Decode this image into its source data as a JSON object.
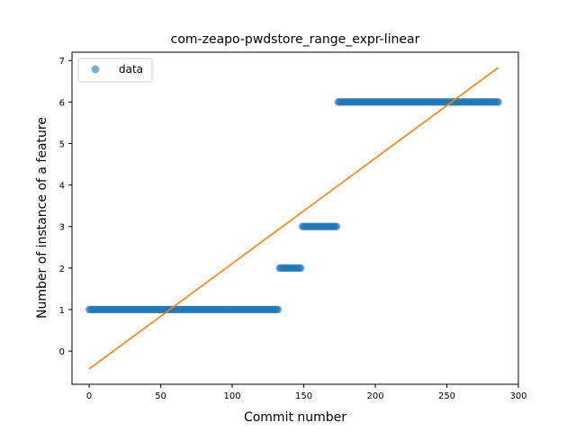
{
  "chart_data": {
    "type": "scatter",
    "title": "com-zeapo-pwdstore_range_expr-linear",
    "xlabel": "Commit number",
    "ylabel": "Number of instance of a feature",
    "xlim": [
      -12,
      300
    ],
    "ylim": [
      -0.8,
      7.2
    ],
    "xticks": [
      0,
      50,
      100,
      150,
      200,
      250,
      300
    ],
    "yticks": [
      0,
      1,
      2,
      3,
      4,
      5,
      6,
      7
    ],
    "legend": {
      "position": "top-left",
      "entries": [
        "data"
      ]
    },
    "grid": false,
    "series": [
      {
        "name": "data",
        "kind": "scatter",
        "color": "#1f77b4",
        "segments": [
          {
            "x_start": 0,
            "x_end": 132,
            "y": 1
          },
          {
            "x_start": 133,
            "x_end": 148,
            "y": 2
          },
          {
            "x_start": 149,
            "x_end": 173,
            "y": 3
          },
          {
            "x_start": 174,
            "x_end": 286,
            "y": 6
          }
        ]
      },
      {
        "kind": "line",
        "color": "#ff7f0e",
        "points": [
          [
            0,
            -0.43
          ],
          [
            286,
            6.83
          ]
        ]
      }
    ]
  }
}
